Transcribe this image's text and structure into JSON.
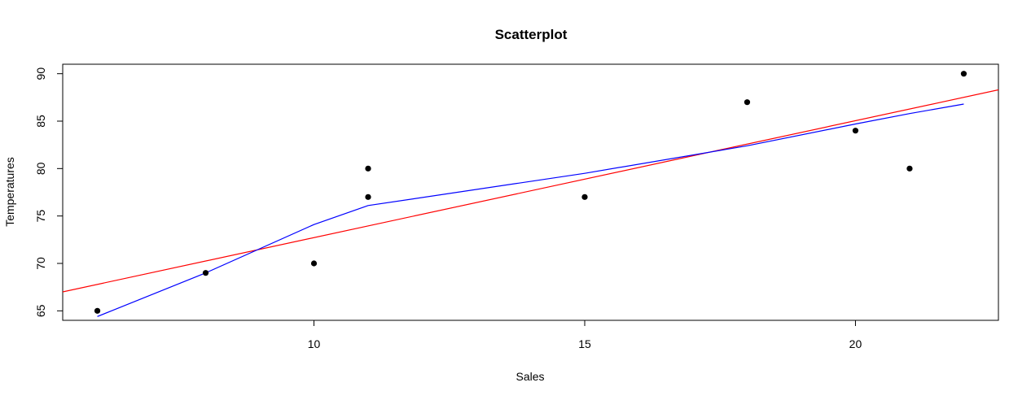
{
  "chart_data": {
    "type": "scatter",
    "title": "Scatterplot",
    "xlabel": "Sales",
    "ylabel": "Temperatures",
    "xlim": [
      5.36,
      22.64
    ],
    "ylim": [
      64.0,
      91.0
    ],
    "x_ticks": [
      10,
      15,
      20
    ],
    "y_ticks": [
      65,
      70,
      75,
      80,
      85,
      90
    ],
    "grid": false,
    "points": [
      {
        "x": 6,
        "y": 65
      },
      {
        "x": 8,
        "y": 69
      },
      {
        "x": 10,
        "y": 70
      },
      {
        "x": 11,
        "y": 80
      },
      {
        "x": 11,
        "y": 77
      },
      {
        "x": 15,
        "y": 77
      },
      {
        "x": 18,
        "y": 87
      },
      {
        "x": 20,
        "y": 84
      },
      {
        "x": 21,
        "y": 80
      },
      {
        "x": 22,
        "y": 90
      }
    ],
    "lines": [
      {
        "kind": "linear-fit",
        "color": "#ff0000",
        "x": [
          5.36,
          22.64
        ],
        "y": [
          67.0,
          88.3
        ]
      },
      {
        "kind": "smoother",
        "color": "#0000ff",
        "x": [
          6,
          8,
          10,
          11,
          15,
          18,
          20,
          21,
          22
        ],
        "y": [
          64.4,
          69.0,
          74.1,
          76.1,
          79.5,
          82.4,
          84.7,
          85.8,
          86.8
        ]
      }
    ]
  }
}
